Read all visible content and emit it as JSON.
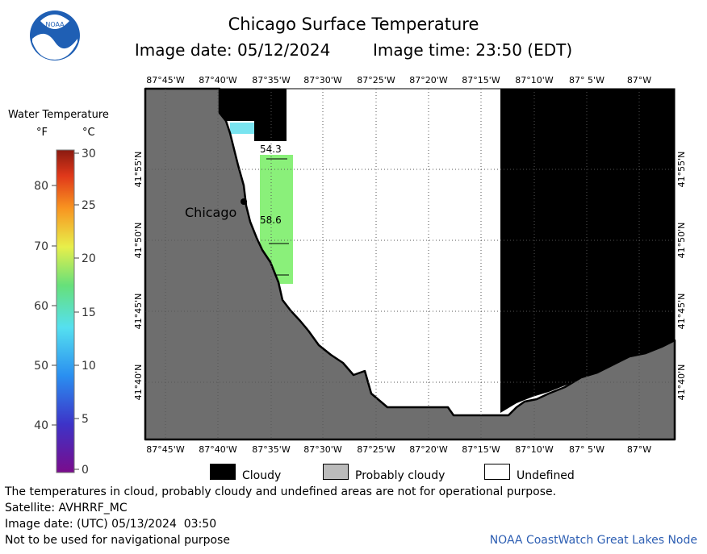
{
  "header": {
    "title": "Chicago Surface Temperature",
    "image_date": "Image date: 05/12/2024",
    "image_time": "Image time: 23:50 (EDT)"
  },
  "logo": {
    "icon": "noaa-logo-icon",
    "text": "NOAA"
  },
  "map": {
    "longitude_ticks": [
      "87°45'W",
      "87°40'W",
      "87°35'W",
      "87°30'W",
      "87°25'W",
      "87°20'W",
      "87°15'W",
      "87°10'W",
      "87° 5'W",
      "87°W"
    ],
    "latitude_ticks": [
      "41°55'N",
      "41°50'N",
      "41°45'N",
      "41°40'N"
    ],
    "city_label": "Chicago",
    "temperature_labels": [
      "54.3",
      "58.6"
    ],
    "colors": {
      "land": "#6e6e6e",
      "cloudy": "#000000",
      "undefined": "#ffffff",
      "water_warm": "#8af07a",
      "water_cool": "#79e4f0"
    }
  },
  "legend": {
    "title": "Water Temperature",
    "unit_f": "°F",
    "unit_c": "°C",
    "fahrenheit_labels": [
      "80",
      "70",
      "60",
      "50",
      "40"
    ],
    "celsius_labels": [
      "30",
      "25",
      "20",
      "15",
      "10",
      "5",
      "0"
    ]
  },
  "key": [
    {
      "label": "Cloudy",
      "color": "#000000"
    },
    {
      "label": "Probably cloudy",
      "color": "#bbbbbb"
    },
    {
      "label": "Undefined",
      "color": "#ffffff"
    }
  ],
  "footer": {
    "note": "The temperatures in cloud, probably cloudy and undefined areas are not for operational purpose.",
    "satellite": "Satellite: AVHRRF_MC",
    "utc_date": "Image date: (UTC) 05/13/2024  03:50",
    "disclaimer": "Not to be used for navigational purpose",
    "credit": "NOAA CoastWatch Great Lakes Node"
  }
}
